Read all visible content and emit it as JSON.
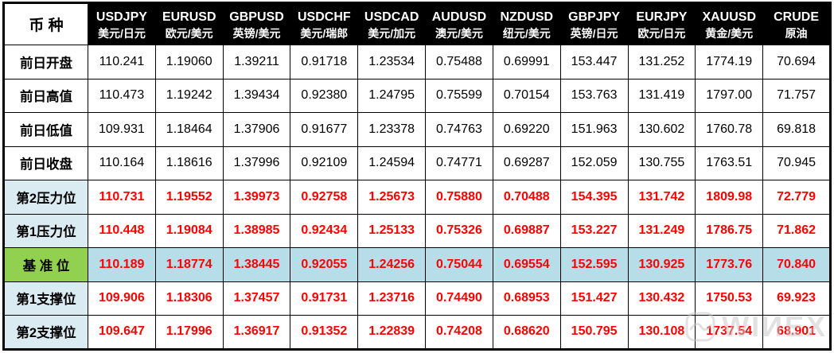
{
  "chart_data": {
    "type": "table",
    "corner_label": "币 种",
    "columns": [
      {
        "symbol": "USDJPY",
        "name": "美元/日元"
      },
      {
        "symbol": "EURUSD",
        "name": "欧元/美元"
      },
      {
        "symbol": "GBPUSD",
        "name": "英镑/美元"
      },
      {
        "symbol": "USDCHF",
        "name": "美元/瑞郎"
      },
      {
        "symbol": "USDCAD",
        "name": "美元/加元"
      },
      {
        "symbol": "AUDUSD",
        "name": "澳元/美元"
      },
      {
        "symbol": "NZDUSD",
        "name": "纽元/美元"
      },
      {
        "symbol": "GBPJPY",
        "name": "英镑/日元"
      },
      {
        "symbol": "EURJPY",
        "name": "欧元/日元"
      },
      {
        "symbol": "XAUUSD",
        "name": "黄金/美元"
      },
      {
        "symbol": "CRUDE",
        "name": "原油"
      }
    ],
    "rows": [
      {
        "label": "前日开盘",
        "style": "prev",
        "values": [
          "110.241",
          "1.19060",
          "1.39211",
          "0.91718",
          "1.23534",
          "0.75488",
          "0.69991",
          "153.447",
          "131.252",
          "1774.19",
          "70.694"
        ]
      },
      {
        "label": "前日高值",
        "style": "prev",
        "values": [
          "110.473",
          "1.19242",
          "1.39434",
          "0.92380",
          "1.24795",
          "0.75599",
          "0.70154",
          "153.763",
          "131.419",
          "1797.00",
          "71.757"
        ]
      },
      {
        "label": "前日低值",
        "style": "prev",
        "values": [
          "109.931",
          "1.18464",
          "1.37906",
          "0.91677",
          "1.23378",
          "0.74763",
          "0.69220",
          "151.963",
          "130.602",
          "1760.78",
          "69.818"
        ]
      },
      {
        "label": "前日收盘",
        "style": "prev",
        "values": [
          "110.164",
          "1.18616",
          "1.37996",
          "0.92109",
          "1.24594",
          "0.74771",
          "0.69287",
          "152.059",
          "130.755",
          "1763.51",
          "70.945"
        ]
      },
      {
        "label": "第2压力位",
        "style": "level",
        "values": [
          "110.731",
          "1.19552",
          "1.39973",
          "0.92758",
          "1.25673",
          "0.75880",
          "0.70488",
          "154.395",
          "131.742",
          "1809.98",
          "72.779"
        ]
      },
      {
        "label": "第1压力位",
        "style": "level",
        "values": [
          "110.448",
          "1.19084",
          "1.38985",
          "0.92434",
          "1.25133",
          "0.75326",
          "0.69887",
          "153.227",
          "131.249",
          "1786.75",
          "71.862"
        ]
      },
      {
        "label": "基 准 位",
        "style": "base",
        "values": [
          "110.189",
          "1.18774",
          "1.38445",
          "0.92055",
          "1.24256",
          "0.75044",
          "0.69554",
          "152.595",
          "130.925",
          "1773.76",
          "70.840"
        ]
      },
      {
        "label": "第1支撑位",
        "style": "level",
        "values": [
          "109.906",
          "1.18306",
          "1.37457",
          "0.91731",
          "1.23716",
          "0.74490",
          "0.68953",
          "151.427",
          "130.432",
          "1750.53",
          "69.923"
        ]
      },
      {
        "label": "第2支撑位",
        "style": "level",
        "values": [
          "109.647",
          "1.17996",
          "1.36917",
          "0.91352",
          "1.22839",
          "0.74208",
          "0.68620",
          "150.795",
          "130.108",
          "1737.54",
          "68.901"
        ]
      }
    ]
  },
  "watermark": {
    "text": "WIИEX"
  },
  "colors": {
    "header_bg": "#000000",
    "header_text": "#FFFFFF",
    "level_label_bg": "#DAEBF2",
    "base_label_bg": "#92D050",
    "base_row_bg": "#B7DDE8",
    "value_red": "#FF0000",
    "border": "#000000",
    "watermark_gray": "#C6C6C6"
  }
}
